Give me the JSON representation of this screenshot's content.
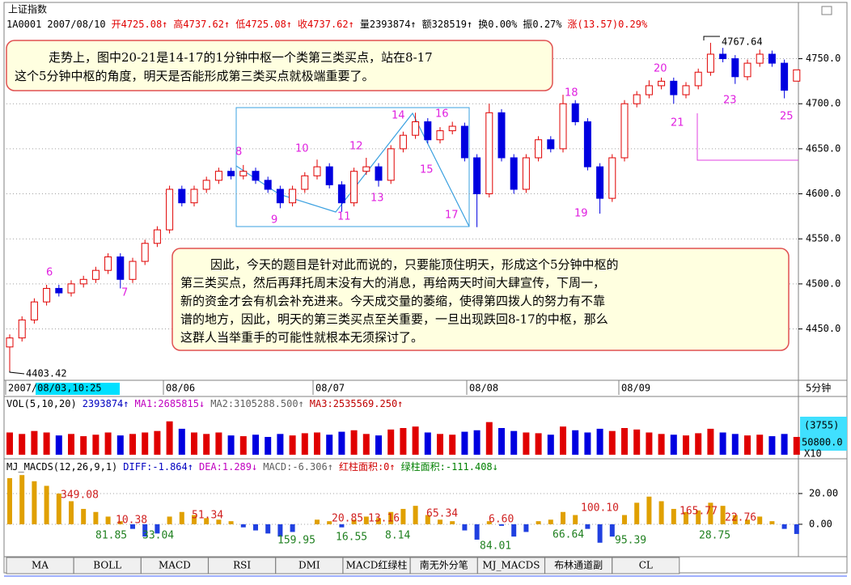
{
  "header": {
    "symbol": "上证指数",
    "items": [
      {
        "text": "1A0001",
        "color": "#000000"
      },
      {
        "text": "2007/08/10",
        "color": "#000000"
      },
      {
        "text": "开4725.08↑",
        "color": "#e00000"
      },
      {
        "text": "高4737.62↑",
        "color": "#e00000"
      },
      {
        "text": "低4725.08↑",
        "color": "#e00000"
      },
      {
        "text": "收4737.62↑",
        "color": "#e00000"
      },
      {
        "text": "量2393874↑",
        "color": "#000000"
      },
      {
        "text": "额328519↑",
        "color": "#000000"
      },
      {
        "text": "换0.00%",
        "color": "#000000"
      },
      {
        "text": "振0.27%",
        "color": "#000000"
      },
      {
        "text": "涨(13.57)0.29%",
        "color": "#e00000"
      }
    ]
  },
  "chart_data": {
    "type": "candlestick",
    "candles": {
      "open": [
        4430,
        4440,
        4460,
        4480,
        4495,
        4490,
        4500,
        4505,
        4515,
        4530,
        4505,
        4525,
        4545,
        4560,
        4605,
        4590,
        4605,
        4615,
        4625,
        4620,
        4625,
        4615,
        4605,
        4590,
        4605,
        4620,
        4630,
        4610,
        4590,
        4625,
        4630,
        4615,
        4650,
        4665,
        4680,
        4660,
        4670,
        4675,
        4640,
        4600,
        4690,
        4640,
        4605,
        4640,
        4660,
        4650,
        4700,
        4680,
        4630,
        4595,
        4640,
        4700,
        4710,
        4720,
        4725,
        4710,
        4720,
        4735,
        4755,
        4750,
        4730,
        4745,
        4755,
        4745,
        4725.08
      ],
      "high": [
        4444,
        4464,
        4484,
        4499,
        4499,
        4504,
        4509,
        4519,
        4534,
        4534,
        4529,
        4549,
        4564,
        4609,
        4609,
        4609,
        4619,
        4629,
        4629,
        4632,
        4629,
        4619,
        4609,
        4609,
        4624,
        4638,
        4634,
        4614,
        4629,
        4640,
        4634,
        4654,
        4669,
        4690,
        4684,
        4674,
        4680,
        4679,
        4644,
        4700,
        4694,
        4644,
        4644,
        4664,
        4664,
        4710,
        4704,
        4684,
        4634,
        4644,
        4704,
        4714,
        4726,
        4729,
        4729,
        4724,
        4739,
        4767.64,
        4762,
        4754,
        4749,
        4760,
        4759,
        4749,
        4737.62
      ],
      "low": [
        4403.42,
        4436,
        4456,
        4476,
        4486,
        4486,
        4496,
        4501,
        4511,
        4495,
        4501,
        4521,
        4541,
        4556,
        4586,
        4586,
        4601,
        4611,
        4616,
        4616,
        4611,
        4601,
        4584,
        4586,
        4601,
        4616,
        4606,
        4580,
        4586,
        4621,
        4608,
        4611,
        4646,
        4661,
        4656,
        4656,
        4666,
        4636,
        4563,
        4596,
        4636,
        4600,
        4601,
        4636,
        4646,
        4646,
        4676,
        4626,
        4578,
        4591,
        4636,
        4696,
        4706,
        4716,
        4700,
        4706,
        4716,
        4731,
        4746,
        4722,
        4726,
        4741,
        4741,
        4706,
        4725.08
      ],
      "close": [
        4440,
        4460,
        4480,
        4495,
        4490,
        4500,
        4505,
        4515,
        4530,
        4505,
        4525,
        4545,
        4560,
        4605,
        4590,
        4605,
        4615,
        4625,
        4620,
        4625,
        4615,
        4605,
        4590,
        4605,
        4620,
        4630,
        4610,
        4590,
        4625,
        4630,
        4615,
        4650,
        4665,
        4680,
        4660,
        4670,
        4675,
        4640,
        4600,
        4690,
        4640,
        4605,
        4640,
        4660,
        4650,
        4700,
        4680,
        4630,
        4595,
        4640,
        4700,
        4710,
        4720,
        4725,
        4710,
        4720,
        4735,
        4755,
        4750,
        4730,
        4745,
        4755,
        4745,
        4715,
        4737.62
      ],
      "up_color": "#e00000",
      "down_color": "#0000e0"
    },
    "ylim": [
      4393,
      4790
    ],
    "yticks": [
      {
        "value": 4750,
        "label": "4750.0"
      },
      {
        "value": 4700,
        "label": "4700.0"
      },
      {
        "value": 4650,
        "label": "4650.0"
      },
      {
        "value": 4600,
        "label": "4600.0"
      },
      {
        "value": 4550,
        "label": "4550.0"
      },
      {
        "value": 4500,
        "label": "4500.0"
      },
      {
        "value": 4450,
        "label": "4450.0"
      }
    ],
    "grid": true,
    "dates": [
      "2007/08/03,10:25",
      "08/06",
      "08/07",
      "08/08",
      "08/09"
    ],
    "period": "5分钟",
    "wave_labels": [
      "6",
      "7",
      "8",
      "9",
      "10",
      "11",
      "12",
      "13",
      "14",
      "15",
      "16",
      "17",
      "18",
      "19",
      "20",
      "21",
      "23",
      "25"
    ],
    "notes": [
      [
        "走势上，图中20-21是14-17的1分钟中枢一个类第三类买点，站在8-17",
        "这个5分钟中枢的角度，明天是否能形成第三类买点就极端重要了。"
      ],
      [
        "因此，今天的题目是针对此而说的，只要能顶住明天，形成这个5分钟中枢的",
        "第三类买点，然后再拜托周末没有大的消息，再给两天时间大肆宣传，下周一，",
        "新的资金才会有机会补充进来。今天成交量的萎缩，使得第四拨人的努力有不靠",
        "谱的地方，因此，明天的第三类买点至关重要，一旦出现跌回8-17的中枢，那么",
        "这群人当举重手的可能性就根本无须探讨了。"
      ]
    ],
    "volume": {
      "header": [
        {
          "text": "VOL(5,10,20)",
          "color": "#000000"
        },
        {
          "text": "2393874↑",
          "color": "#0000c0"
        },
        {
          "text": "MA1:2685815↓",
          "color": "#c000c0"
        },
        {
          "text": "MA2:3105288.500↑",
          "color": "#606060"
        },
        {
          "text": "MA3:2535569.250↑",
          "color": "#c00000"
        }
      ],
      "values": [
        30,
        28,
        32,
        30,
        26,
        28,
        25,
        27,
        30,
        26,
        28,
        30,
        32,
        45,
        35,
        30,
        28,
        30,
        26,
        25,
        27,
        24,
        28,
        26,
        29,
        30,
        27,
        31,
        33,
        28,
        26,
        34,
        36,
        38,
        30,
        28,
        27,
        31,
        33,
        44,
        36,
        32,
        30,
        29,
        27,
        38,
        33,
        30,
        35,
        32,
        36,
        34,
        30,
        28,
        27,
        26,
        29,
        35,
        30,
        28,
        26,
        27,
        25,
        28,
        24
      ],
      "ylim": [
        0,
        60
      ],
      "axis_texts": [
        "(3755)",
        "50800.0",
        "X10"
      ]
    },
    "macd": {
      "header": [
        {
          "text": "MJ_MACDS(12,26,9,1)",
          "color": "#000000"
        },
        {
          "text": "DIFF:-1.864↑",
          "color": "#0000c0"
        },
        {
          "text": "DEA:1.289↓",
          "color": "#c000c0"
        },
        {
          "text": "MACD:-6.306↑",
          "color": "#606060"
        },
        {
          "text": "红柱面积:0↑",
          "color": "#d00000"
        },
        {
          "text": "绿柱面积:-111.408↓",
          "color": "#008000"
        }
      ],
      "values": [
        30,
        32,
        28,
        25,
        20,
        15,
        10,
        8,
        5,
        2,
        -3,
        -8,
        -6,
        5,
        8,
        6,
        4,
        3,
        2,
        -2,
        -4,
        -6,
        -8,
        -5,
        0,
        3,
        2,
        -2,
        3,
        5,
        4,
        8,
        10,
        12,
        6,
        3,
        2,
        -4,
        -10,
        2,
        -1,
        -8,
        -5,
        2,
        3,
        8,
        6,
        -3,
        -12,
        -8,
        6,
        14,
        18,
        15,
        10,
        8,
        9,
        14,
        12,
        6,
        3,
        5,
        2,
        -3,
        -6.306
      ],
      "pos_color": "#e0a000",
      "neg_color": "#2040e0",
      "ylim": [
        -19.5,
        38.4
      ],
      "yticks": [
        {
          "value": 20,
          "label": "20.00"
        },
        {
          "value": 0,
          "label": "0.00"
        }
      ],
      "red_areas": [
        "349.08",
        "10.38",
        "51.34",
        "20.85",
        "13.16",
        "65.34",
        "6.60",
        "100.10",
        "165.77",
        "22.76"
      ],
      "green_areas": [
        "81.85",
        "33.04",
        "159.95",
        "16.55",
        "8.14",
        "84.01",
        "66.64",
        "95.39",
        "28.75"
      ]
    }
  },
  "tabs": [
    "MA",
    "BOLL",
    "MACD",
    "RSI",
    "DMI",
    "MACD红绿柱",
    "南无外分笔",
    "MJ_MACDS",
    "布林通道副",
    "CL"
  ]
}
